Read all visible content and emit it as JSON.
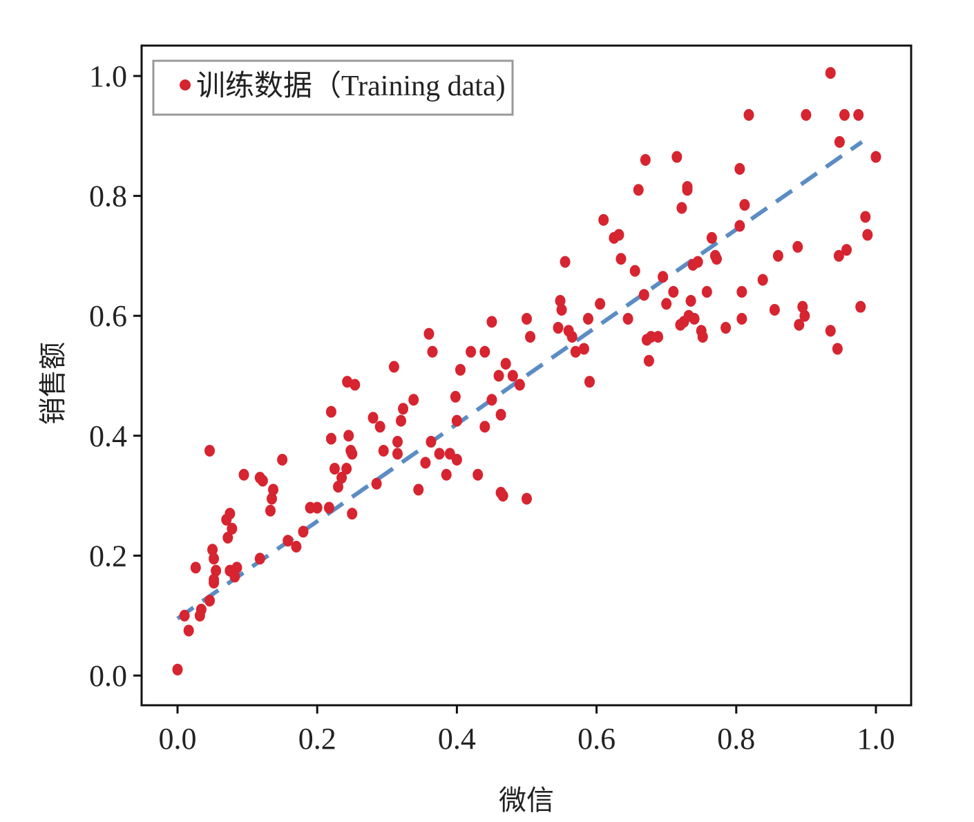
{
  "chart_data": {
    "type": "scatter",
    "xlabel": "微信",
    "ylabel": "销售额",
    "xlim": [
      -0.05,
      1.05
    ],
    "ylim": [
      -0.05,
      1.05
    ],
    "x_ticks": [
      "0.0",
      "0.2",
      "0.4",
      "0.6",
      "0.8",
      "1.0"
    ],
    "y_ticks": [
      "0.0",
      "0.2",
      "0.4",
      "0.6",
      "0.8",
      "1.0"
    ],
    "grid": false,
    "legend_position": "top-left",
    "colors": {
      "points": "#d62430",
      "fit_line": "#5b8cc4",
      "frame": "#111111"
    },
    "series": [
      {
        "name": "训练数据（Training data)",
        "kind": "points",
        "points": [
          [
            0.0,
            0.01
          ],
          [
            0.01,
            0.1
          ],
          [
            0.016,
            0.075
          ],
          [
            0.026,
            0.18
          ],
          [
            0.032,
            0.1
          ],
          [
            0.034,
            0.11
          ],
          [
            0.046,
            0.125
          ],
          [
            0.046,
            0.375
          ],
          [
            0.05,
            0.21
          ],
          [
            0.052,
            0.195
          ],
          [
            0.052,
            0.16
          ],
          [
            0.052,
            0.155
          ],
          [
            0.055,
            0.175
          ],
          [
            0.07,
            0.26
          ],
          [
            0.072,
            0.23
          ],
          [
            0.075,
            0.27
          ],
          [
            0.075,
            0.175
          ],
          [
            0.078,
            0.245
          ],
          [
            0.082,
            0.165
          ],
          [
            0.085,
            0.18
          ],
          [
            0.095,
            0.335
          ],
          [
            0.118,
            0.195
          ],
          [
            0.118,
            0.33
          ],
          [
            0.122,
            0.325
          ],
          [
            0.133,
            0.275
          ],
          [
            0.135,
            0.295
          ],
          [
            0.137,
            0.31
          ],
          [
            0.15,
            0.36
          ],
          [
            0.158,
            0.225
          ],
          [
            0.17,
            0.215
          ],
          [
            0.18,
            0.24
          ],
          [
            0.19,
            0.28
          ],
          [
            0.2,
            0.28
          ],
          [
            0.217,
            0.28
          ],
          [
            0.22,
            0.44
          ],
          [
            0.22,
            0.395
          ],
          [
            0.225,
            0.345
          ],
          [
            0.23,
            0.315
          ],
          [
            0.235,
            0.33
          ],
          [
            0.242,
            0.345
          ],
          [
            0.243,
            0.49
          ],
          [
            0.245,
            0.4
          ],
          [
            0.248,
            0.375
          ],
          [
            0.25,
            0.37
          ],
          [
            0.25,
            0.27
          ],
          [
            0.254,
            0.485
          ],
          [
            0.28,
            0.43
          ],
          [
            0.285,
            0.32
          ],
          [
            0.29,
            0.415
          ],
          [
            0.295,
            0.375
          ],
          [
            0.31,
            0.515
          ],
          [
            0.315,
            0.39
          ],
          [
            0.315,
            0.37
          ],
          [
            0.32,
            0.425
          ],
          [
            0.323,
            0.445
          ],
          [
            0.338,
            0.46
          ],
          [
            0.345,
            0.31
          ],
          [
            0.355,
            0.355
          ],
          [
            0.36,
            0.57
          ],
          [
            0.363,
            0.39
          ],
          [
            0.365,
            0.54
          ],
          [
            0.375,
            0.37
          ],
          [
            0.385,
            0.335
          ],
          [
            0.39,
            0.37
          ],
          [
            0.398,
            0.465
          ],
          [
            0.4,
            0.36
          ],
          [
            0.4,
            0.425
          ],
          [
            0.405,
            0.51
          ],
          [
            0.42,
            0.54
          ],
          [
            0.43,
            0.335
          ],
          [
            0.44,
            0.54
          ],
          [
            0.44,
            0.415
          ],
          [
            0.45,
            0.46
          ],
          [
            0.45,
            0.59
          ],
          [
            0.46,
            0.5
          ],
          [
            0.463,
            0.435
          ],
          [
            0.463,
            0.305
          ],
          [
            0.466,
            0.3
          ],
          [
            0.47,
            0.52
          ],
          [
            0.48,
            0.5
          ],
          [
            0.49,
            0.485
          ],
          [
            0.5,
            0.595
          ],
          [
            0.5,
            0.295
          ],
          [
            0.505,
            0.565
          ],
          [
            0.545,
            0.58
          ],
          [
            0.548,
            0.625
          ],
          [
            0.55,
            0.61
          ],
          [
            0.555,
            0.69
          ],
          [
            0.56,
            0.575
          ],
          [
            0.565,
            0.565
          ],
          [
            0.57,
            0.54
          ],
          [
            0.582,
            0.545
          ],
          [
            0.588,
            0.595
          ],
          [
            0.59,
            0.49
          ],
          [
            0.605,
            0.62
          ],
          [
            0.61,
            0.76
          ],
          [
            0.625,
            0.73
          ],
          [
            0.632,
            0.735
          ],
          [
            0.635,
            0.695
          ],
          [
            0.645,
            0.595
          ],
          [
            0.655,
            0.675
          ],
          [
            0.66,
            0.81
          ],
          [
            0.668,
            0.635
          ],
          [
            0.67,
            0.86
          ],
          [
            0.672,
            0.56
          ],
          [
            0.675,
            0.525
          ],
          [
            0.678,
            0.565
          ],
          [
            0.688,
            0.565
          ],
          [
            0.695,
            0.665
          ],
          [
            0.7,
            0.62
          ],
          [
            0.71,
            0.64
          ],
          [
            0.715,
            0.865
          ],
          [
            0.72,
            0.585
          ],
          [
            0.722,
            0.78
          ],
          [
            0.725,
            0.59
          ],
          [
            0.73,
            0.815
          ],
          [
            0.73,
            0.81
          ],
          [
            0.732,
            0.6
          ],
          [
            0.735,
            0.625
          ],
          [
            0.738,
            0.685
          ],
          [
            0.74,
            0.595
          ],
          [
            0.745,
            0.69
          ],
          [
            0.75,
            0.575
          ],
          [
            0.752,
            0.565
          ],
          [
            0.758,
            0.64
          ],
          [
            0.765,
            0.73
          ],
          [
            0.77,
            0.7
          ],
          [
            0.772,
            0.695
          ],
          [
            0.785,
            0.58
          ],
          [
            0.805,
            0.845
          ],
          [
            0.805,
            0.75
          ],
          [
            0.808,
            0.64
          ],
          [
            0.808,
            0.595
          ],
          [
            0.812,
            0.785
          ],
          [
            0.818,
            0.935
          ],
          [
            0.838,
            0.66
          ],
          [
            0.855,
            0.61
          ],
          [
            0.86,
            0.7
          ],
          [
            0.888,
            0.715
          ],
          [
            0.89,
            0.585
          ],
          [
            0.895,
            0.615
          ],
          [
            0.898,
            0.6
          ],
          [
            0.9,
            0.935
          ],
          [
            0.935,
            1.005
          ],
          [
            0.935,
            0.575
          ],
          [
            0.945,
            0.545
          ],
          [
            0.947,
            0.7
          ],
          [
            0.948,
            0.89
          ],
          [
            0.955,
            0.935
          ],
          [
            0.958,
            0.71
          ],
          [
            0.975,
            0.935
          ],
          [
            0.978,
            0.615
          ],
          [
            0.985,
            0.765
          ],
          [
            0.988,
            0.735
          ],
          [
            1.0,
            0.865
          ]
        ]
      },
      {
        "kind": "fit_line",
        "style": "dashed",
        "x": [
          0.0,
          0.98
        ],
        "y": [
          0.095,
          0.89
        ]
      }
    ]
  }
}
